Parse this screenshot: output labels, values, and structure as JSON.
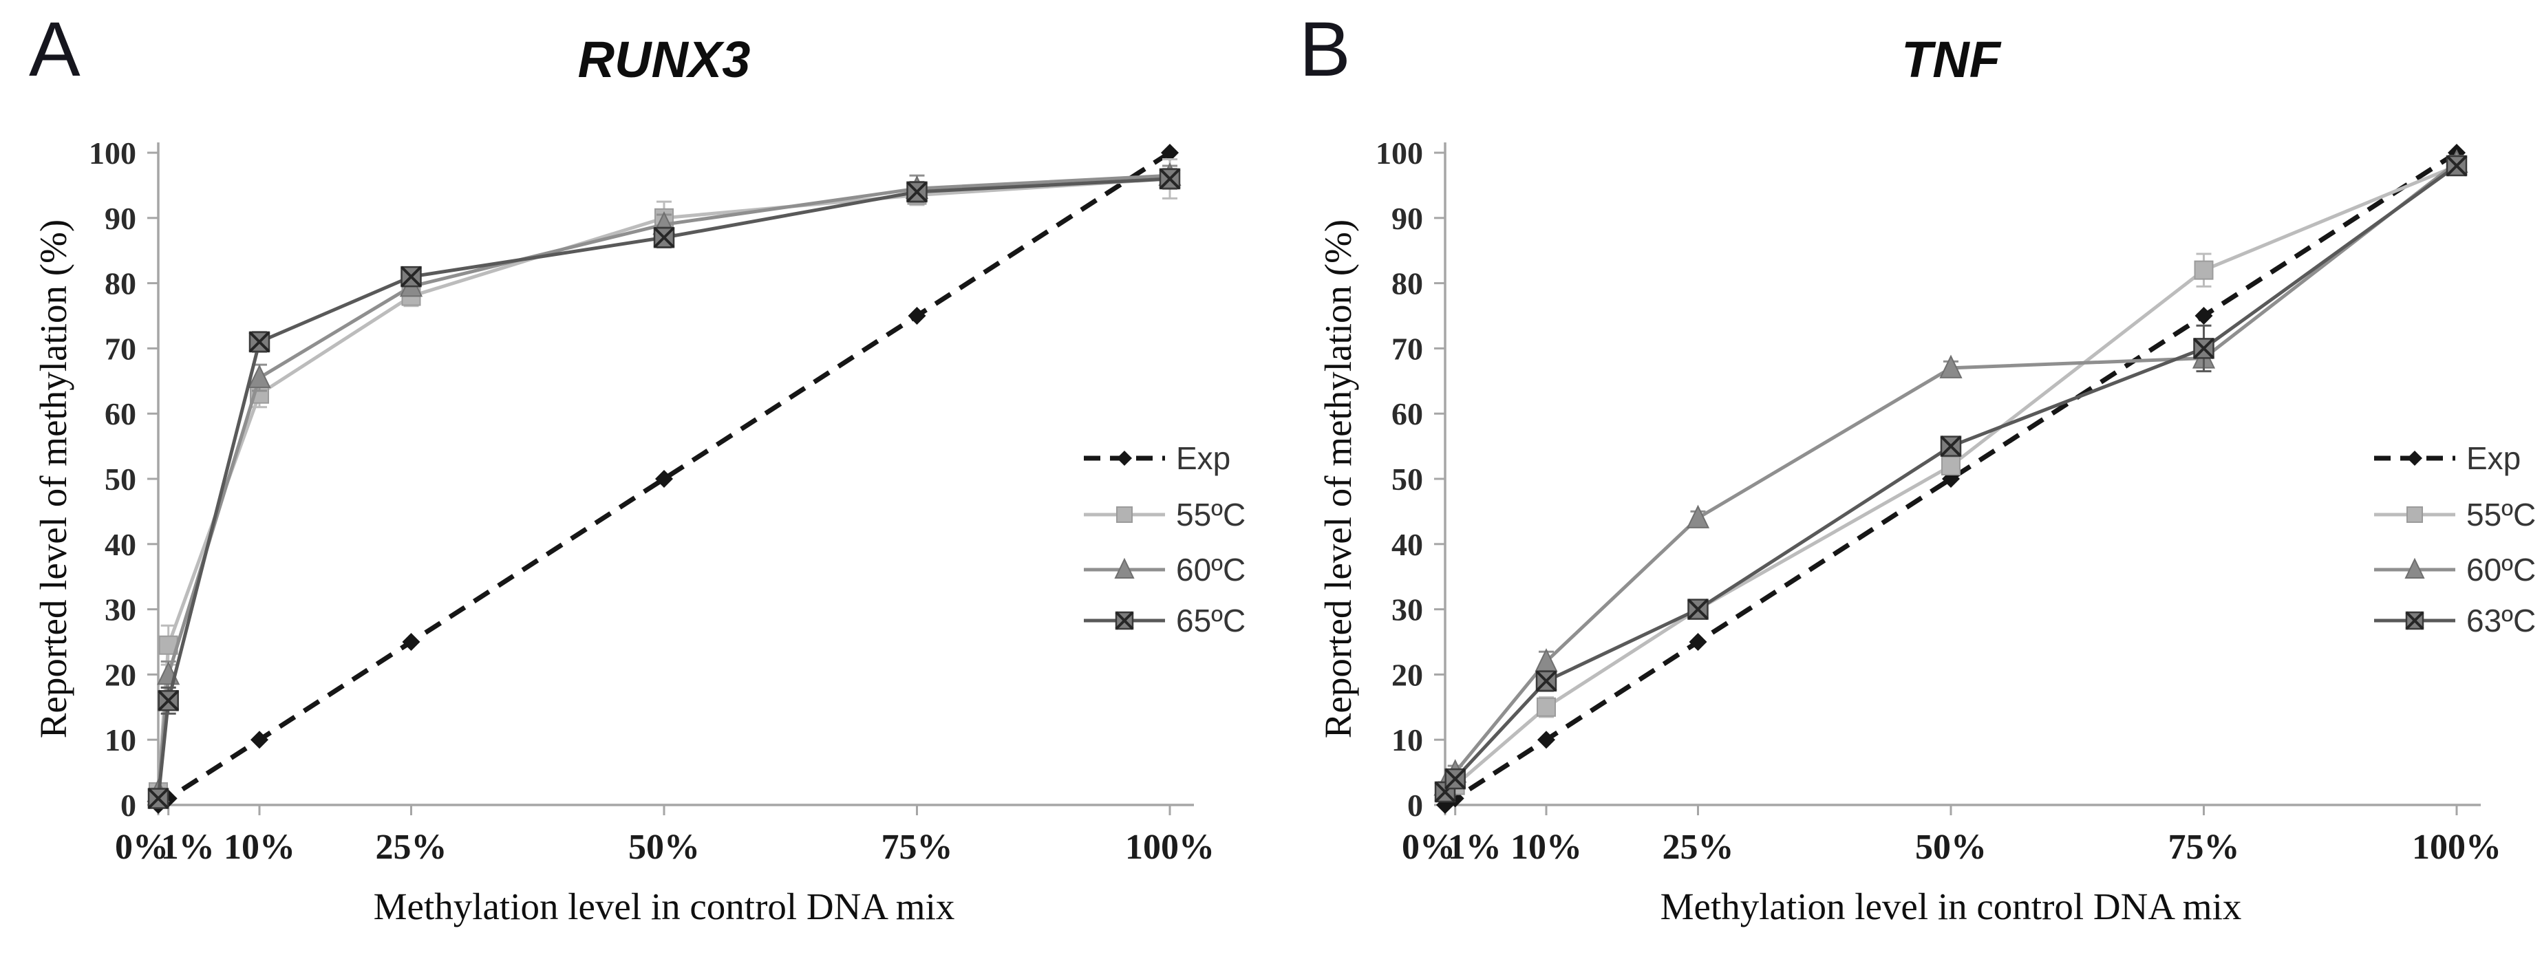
{
  "chart_data": [
    {
      "type": "line",
      "panel_label": "A",
      "title": "RUNX3",
      "xlabel": "Methylation level in control DNA mix",
      "ylabel": "Reported level of methylation (%)",
      "x_categories": [
        "0%",
        "1%",
        "10%",
        "25%",
        "50%",
        "75%",
        "100%"
      ],
      "x_values": [
        0,
        1,
        10,
        25,
        50,
        75,
        100
      ],
      "y_ticks": [
        0,
        10,
        20,
        30,
        40,
        50,
        60,
        70,
        80,
        90,
        100
      ],
      "ylim": [
        0,
        100
      ],
      "xlim": [
        0,
        100
      ],
      "grid": false,
      "legend_position": "right-inside",
      "series": [
        {
          "name": "Exp",
          "marker": "diamond",
          "dashed": true,
          "color": "#161616",
          "fill": "#161616",
          "edge": "#161616",
          "values": [
            0,
            1,
            10,
            25,
            50,
            75,
            100
          ]
        },
        {
          "name": "55ºC",
          "marker": "square",
          "dashed": false,
          "color": "#bcbcbc",
          "fill": "#b3b3b3",
          "edge": "#9b9b9b",
          "values": [
            2,
            24.5,
            63,
            78,
            90,
            93.5,
            96
          ],
          "err": [
            0.5,
            3,
            2,
            1.5,
            2.5,
            1.5,
            3
          ]
        },
        {
          "name": "60ºC",
          "marker": "triangle",
          "dashed": false,
          "color": "#8f8f8f",
          "fill": "#8a8a8a",
          "edge": "#6f6f6f",
          "values": [
            2,
            20,
            65.5,
            79.5,
            89,
            94.5,
            96.5
          ],
          "err": [
            0.5,
            2,
            2,
            1,
            1.5,
            2,
            1.5
          ]
        },
        {
          "name": "65ºC",
          "marker": "xsquare",
          "dashed": false,
          "color": "#595959",
          "fill": "#7d7d7d",
          "edge": "#3a3a3a",
          "values": [
            1,
            16,
            71,
            81,
            87,
            94,
            96
          ],
          "err": [
            0.5,
            2,
            1.5,
            1,
            1.5,
            1.5,
            1.5
          ]
        }
      ]
    },
    {
      "type": "line",
      "panel_label": "B",
      "title": "TNF",
      "xlabel": "Methylation level in control DNA mix",
      "ylabel": "Reported level of methylation (%)",
      "x_categories": [
        "0%",
        "1%",
        "10%",
        "25%",
        "50%",
        "75%",
        "100%"
      ],
      "x_values": [
        0,
        1,
        10,
        25,
        50,
        75,
        100
      ],
      "y_ticks": [
        0,
        10,
        20,
        30,
        40,
        50,
        60,
        70,
        80,
        90,
        100
      ],
      "ylim": [
        0,
        100
      ],
      "xlim": [
        0,
        100
      ],
      "grid": false,
      "legend_position": "right-inside",
      "series": [
        {
          "name": "Exp",
          "marker": "diamond",
          "dashed": true,
          "color": "#161616",
          "fill": "#161616",
          "edge": "#161616",
          "values": [
            0,
            1,
            10,
            25,
            50,
            75,
            100
          ]
        },
        {
          "name": "55ºC",
          "marker": "square",
          "dashed": false,
          "color": "#bcbcbc",
          "fill": "#b3b3b3",
          "edge": "#9b9b9b",
          "values": [
            2,
            3,
            15,
            30,
            52,
            82,
            98
          ],
          "err": [
            0.5,
            1,
            1.5,
            1,
            1,
            2.5,
            1
          ]
        },
        {
          "name": "60ºC",
          "marker": "triangle",
          "dashed": false,
          "color": "#8f8f8f",
          "fill": "#8a8a8a",
          "edge": "#6f6f6f",
          "values": [
            3,
            5,
            22,
            44,
            67,
            68.5,
            98.5
          ],
          "err": [
            0.5,
            1,
            1.5,
            1,
            1,
            1,
            1
          ]
        },
        {
          "name": "63ºC",
          "marker": "xsquare",
          "dashed": false,
          "color": "#595959",
          "fill": "#7d7d7d",
          "edge": "#3a3a3a",
          "values": [
            2,
            4,
            19,
            30,
            55,
            70,
            98
          ],
          "err": [
            0.5,
            1,
            1.5,
            1,
            1,
            3.5,
            1
          ]
        }
      ]
    }
  ],
  "style": {
    "axis_color": "#a6a6a6",
    "tick_label_color": "#2b2b2b",
    "legend_text_color": "#363636"
  }
}
